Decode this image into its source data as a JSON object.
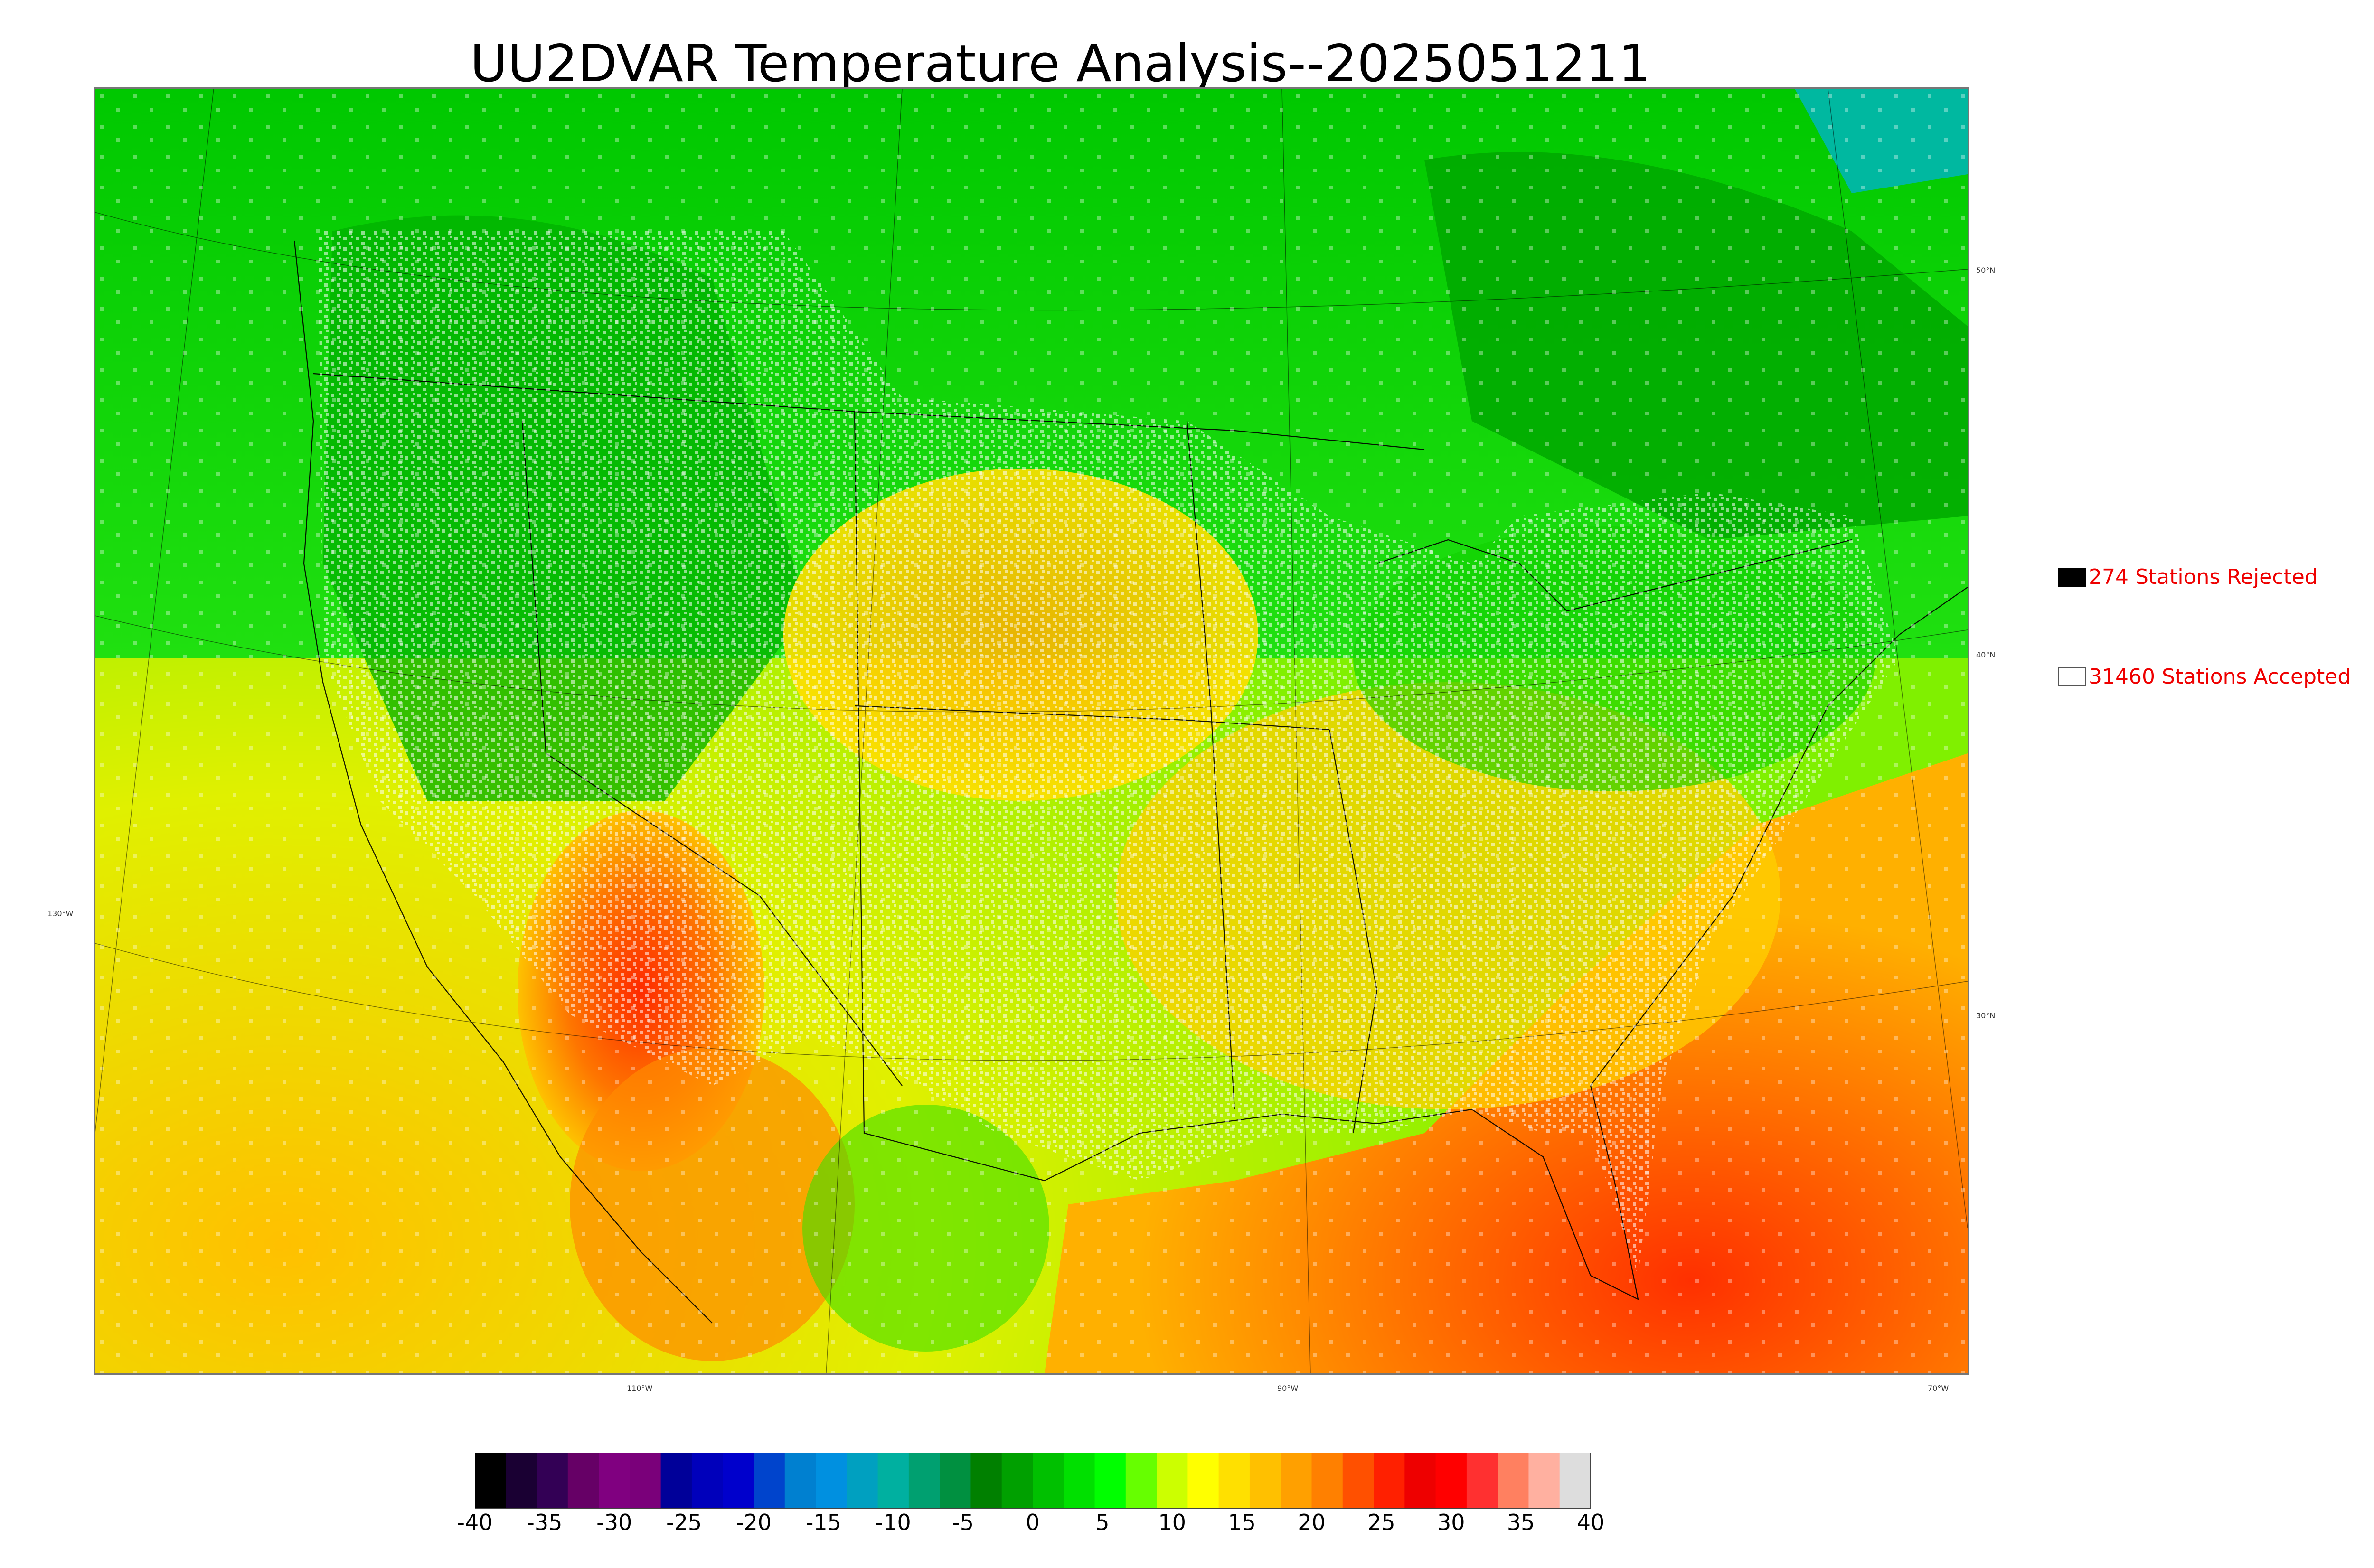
{
  "title": "UU2DVAR Temperature Analysis--2025051211",
  "legend": {
    "rejected_label": "274 Stations Rejected",
    "accepted_label": "31460 Stations Accepted",
    "rejected_color": "#000000",
    "accepted_color": "#ffffff",
    "text_color": "#ee0000"
  },
  "graticule": {
    "lat_labels": [
      "50°N",
      "40°N",
      "30°N"
    ],
    "lon_labels": [
      "130°W",
      "110°W",
      "90°W",
      "70°W"
    ]
  },
  "colorbar": {
    "ticks": [
      "-40",
      "-35",
      "-30",
      "-25",
      "-20",
      "-15",
      "-10",
      "-5",
      "0",
      "5",
      "10",
      "15",
      "20",
      "25",
      "30",
      "35",
      "40"
    ],
    "range": [
      -40,
      40
    ],
    "colors": [
      "#000000",
      "#1a0033",
      "#330055",
      "#660066",
      "#800080",
      "#7a007a",
      "#000099",
      "#0000bb",
      "#0000cc",
      "#0044cc",
      "#0080d0",
      "#0090e0",
      "#00a0c0",
      "#00b0a0",
      "#00a070",
      "#009040",
      "#008000",
      "#00a000",
      "#00c000",
      "#00e000",
      "#00ff00",
      "#66ff00",
      "#ccff00",
      "#ffff00",
      "#ffe000",
      "#ffc000",
      "#ffa000",
      "#ff8000",
      "#ff5000",
      "#ff2000",
      "#ee0000",
      "#ff0000",
      "#ff3030",
      "#ff8060",
      "#ffb0a0",
      "#dddddd"
    ]
  },
  "chart_data": {
    "type": "heatmap",
    "title": "UU2DVAR Temperature Analysis--2025051211",
    "variable": "temperature",
    "colorbar_range": [
      -40,
      40
    ],
    "stations": {
      "rejected": 274,
      "accepted": 31460
    }
  }
}
